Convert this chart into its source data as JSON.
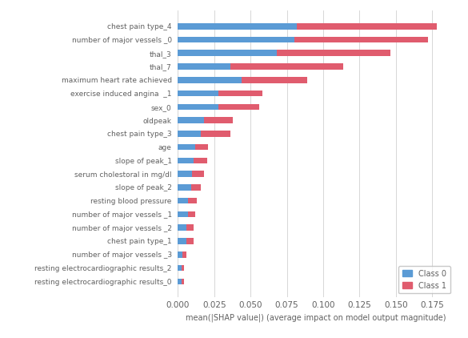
{
  "categories": [
    "resting electrocardiographic results_0",
    "resting electrocardiographic results_2",
    "number of major vessels _3",
    "chest pain type_1",
    "number of major vessels _2",
    "number of major vessels _1",
    "resting blood pressure",
    "slope of peak_2",
    "serum cholestoral in mg/dl",
    "slope of peak_1",
    "age",
    "chest pain type_3",
    "oldpeak",
    "sex_0",
    "exercise induced angina  _1",
    "maximum heart rate achieved",
    "thal_7",
    "thal_3",
    "number of major vessels _0",
    "chest pain type_4"
  ],
  "class0": [
    0.0025,
    0.0025,
    0.003,
    0.006,
    0.006,
    0.007,
    0.007,
    0.009,
    0.01,
    0.011,
    0.012,
    0.016,
    0.018,
    0.028,
    0.028,
    0.044,
    0.036,
    0.068,
    0.08,
    0.082
  ],
  "class1": [
    0.002,
    0.002,
    0.003,
    0.005,
    0.005,
    0.005,
    0.006,
    0.007,
    0.008,
    0.009,
    0.009,
    0.02,
    0.02,
    0.028,
    0.03,
    0.045,
    0.078,
    0.078,
    0.092,
    0.096
  ],
  "color0": "#5b9bd5",
  "color1": "#e05c6e",
  "background_color": "#ffffff",
  "xlabel": "mean(|SHAP value|) (average impact on model output magnitude)",
  "legend_labels": [
    "Class 0",
    "Class 1"
  ],
  "xlim": [
    0,
    0.19
  ],
  "grid_color": "#d0d0d0"
}
